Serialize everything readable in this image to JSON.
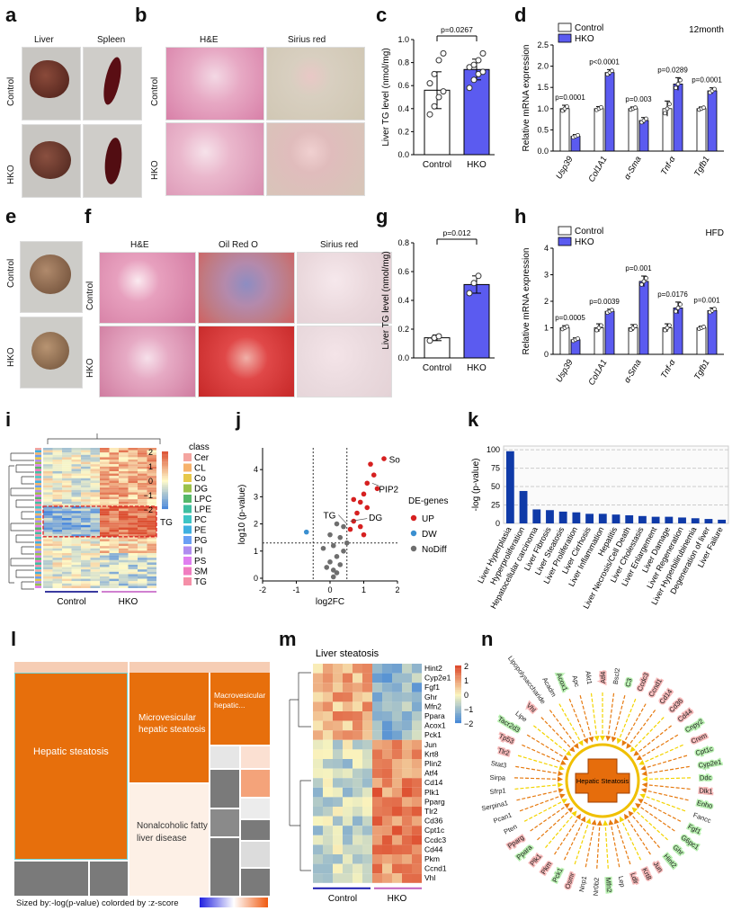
{
  "panels": [
    "a",
    "b",
    "c",
    "d",
    "e",
    "f",
    "g",
    "h",
    "i",
    "j",
    "k",
    "l",
    "m",
    "n"
  ],
  "a": {
    "cols": [
      "Liver",
      "Spleen"
    ],
    "rows": [
      "Control",
      "HKO"
    ]
  },
  "b": {
    "cols": [
      "H&E",
      "Sirius red"
    ],
    "rows": [
      "Control",
      "HKO"
    ]
  },
  "e": {
    "rows": [
      "Control",
      "HKO"
    ]
  },
  "f": {
    "cols": [
      "H&E",
      "Oil Red O",
      "Sirius red"
    ],
    "rows": [
      "Control",
      "HKO"
    ]
  },
  "chart_c": {
    "type": "bar",
    "categories": [
      "Control",
      "HKO"
    ],
    "values": [
      0.56,
      0.74
    ],
    "errors": [
      0.16,
      0.09
    ],
    "points": [
      [
        0.35,
        0.42,
        0.5,
        0.55,
        0.62,
        0.7,
        0.82,
        0.88
      ],
      [
        0.58,
        0.65,
        0.7,
        0.72,
        0.76,
        0.78,
        0.82,
        0.88
      ]
    ],
    "ylabel": "Liver TG level (nmol/mg)",
    "yticks": [
      "0.0",
      "0.2",
      "0.4",
      "0.6",
      "0.8",
      "1.0"
    ],
    "ylim": [
      0,
      1.0
    ],
    "pvalue": "p=0.0267",
    "colors": [
      "#ffffff",
      "#5b5bf0"
    ]
  },
  "chart_g": {
    "type": "bar",
    "categories": [
      "Control",
      "HKO"
    ],
    "values": [
      0.14,
      0.51
    ],
    "errors": [
      0.02,
      0.06
    ],
    "points": [
      [
        0.12,
        0.14,
        0.15
      ],
      [
        0.45,
        0.52,
        0.57
      ]
    ],
    "ylabel": "Liver TG level (nmol/mg)",
    "yticks": [
      "0.0",
      "0.2",
      "0.4",
      "0.6",
      "0.8"
    ],
    "ylim": [
      0,
      0.8
    ],
    "pvalue": "p=0.012",
    "colors": [
      "#ffffff",
      "#5b5bf0"
    ]
  },
  "chart_d": {
    "type": "bar",
    "categories": [
      "Usp39",
      "Col1A1",
      "α-Sma",
      "Tnf-α",
      "Tgfb1"
    ],
    "series": [
      {
        "name": "Control",
        "values": [
          1.0,
          1.0,
          1.0,
          1.0,
          1.0
        ]
      },
      {
        "name": "HKO",
        "values": [
          0.35,
          1.85,
          0.72,
          1.58,
          1.42
        ]
      }
    ],
    "errors": [
      [
        0.08,
        0.05,
        0.04,
        0.18,
        0.04
      ],
      [
        0.04,
        0.07,
        0.07,
        0.15,
        0.07
      ]
    ],
    "pvalues": [
      "p=0.0001",
      "p<0.0001",
      "p=0.003",
      "p=0.0289",
      "p=0.0001"
    ],
    "ylabel": "Relative mRNA expression",
    "yticks": [
      "0.0",
      "0.5",
      "1.0",
      "1.5",
      "2.0",
      "2.5"
    ],
    "ylim": [
      0,
      2.5
    ],
    "note": "12month",
    "colors": [
      "#ffffff",
      "#5b5bf0"
    ]
  },
  "chart_h": {
    "type": "bar",
    "categories": [
      "Usp39",
      "Col1A1",
      "α-Sma",
      "Tnf-α",
      "Tgfb1"
    ],
    "series": [
      {
        "name": "Control",
        "values": [
          1.0,
          1.0,
          1.0,
          1.0,
          1.0
        ]
      },
      {
        "name": "HKO",
        "values": [
          0.55,
          1.62,
          2.75,
          1.75,
          1.65
        ]
      }
    ],
    "errors": [
      [
        0.08,
        0.15,
        0.12,
        0.15,
        0.06
      ],
      [
        0.07,
        0.08,
        0.2,
        0.22,
        0.1
      ]
    ],
    "pvalues": [
      "p=0.0005",
      "p=0.0039",
      "p=0.001",
      "p=0.0176",
      "p=0.001"
    ],
    "ylabel": "Relative mRNA expression",
    "yticks": [
      "0",
      "1",
      "2",
      "3",
      "4"
    ],
    "ylim": [
      0,
      4
    ],
    "note": "HFD",
    "colors": [
      "#ffffff",
      "#5b5bf0"
    ]
  },
  "i": {
    "legend_title": "class",
    "classes": [
      "Cer",
      "CL",
      "Co",
      "DG",
      "LPC",
      "LPE",
      "PC",
      "PE",
      "PG",
      "PI",
      "PS",
      "SM",
      "TG"
    ],
    "class_colors": [
      "#f4a5a0",
      "#f6b26b",
      "#e6c84a",
      "#9bc14a",
      "#55b86a",
      "#3fbfa0",
      "#3ec5c5",
      "#3fb0e0",
      "#6a9ff5",
      "#b08cf0",
      "#e07ef0",
      "#f07cc0",
      "#f58fa8"
    ],
    "scale_ticks": [
      "2",
      "1",
      "0",
      "−1",
      "−2"
    ],
    "tg_label": "TG",
    "groups": [
      "Control",
      "HKO"
    ]
  },
  "chart_j": {
    "type": "scatter",
    "xlabel": "log2FC",
    "ylabel": "log10 (p-value)",
    "xticks": [
      "-2",
      "-1",
      "0",
      "1",
      "2"
    ],
    "yticks": [
      "0",
      "1",
      "2",
      "3",
      "4"
    ],
    "xlim": [
      -2,
      2
    ],
    "ylim": [
      -0.1,
      4.8
    ],
    "legend_title": "DE-genes",
    "legend": [
      {
        "name": "UP",
        "color": "#d62020"
      },
      {
        "name": "DW",
        "color": "#3a8fd0"
      },
      {
        "name": "NoDiff",
        "color": "#6e6e6e"
      }
    ],
    "labels": [
      "So",
      "PIP2",
      "DG",
      "TG"
    ],
    "up": [
      [
        1.6,
        4.4
      ],
      [
        1.2,
        4.2
      ],
      [
        1.3,
        3.8
      ],
      [
        1.1,
        3.5
      ],
      [
        1.4,
        3.3
      ],
      [
        1.0,
        3.1
      ],
      [
        0.9,
        2.8
      ],
      [
        1.1,
        2.6
      ],
      [
        0.8,
        2.4
      ],
      [
        0.7,
        2.1
      ],
      [
        0.9,
        1.9
      ],
      [
        0.6,
        1.8
      ],
      [
        1.0,
        1.6
      ],
      [
        0.7,
        2.9
      ]
    ],
    "dw": [
      [
        -0.7,
        1.7
      ]
    ],
    "nodiff": [
      [
        0.2,
        2.0
      ],
      [
        0.3,
        1.5
      ],
      [
        0.1,
        1.2
      ],
      [
        0.4,
        1.0
      ],
      [
        0.2,
        0.8
      ],
      [
        0.0,
        0.6
      ],
      [
        0.1,
        0.3
      ],
      [
        -0.1,
        0.4
      ],
      [
        0.3,
        0.5
      ],
      [
        0.2,
        0.2
      ],
      [
        0.0,
        1.6
      ],
      [
        0.4,
        1.9
      ],
      [
        -0.2,
        1.1
      ],
      [
        0.5,
        1.3
      ],
      [
        0.1,
        0.05
      ]
    ]
  },
  "chart_k": {
    "type": "bar",
    "categories": [
      "Liver Hyperplasia",
      "Hyperproliferation",
      "Hepatocellular carcinoma",
      "Liver Fibrosis",
      "Liver Steatosis",
      "Liver Proliferation",
      "Liver Cirrhosis",
      "Liver Inflammation",
      "Hepatitis",
      "Liver Necrosis/Cell Death",
      "Liver Cholestasis",
      "Liver Enlargement",
      "Liver Damage",
      "Liver Regeneration",
      "Liver Hyperbilirubinemia",
      "Degeneration of liver",
      "Liver Failure"
    ],
    "values": [
      98,
      44,
      19,
      18,
      16,
      15,
      13,
      13,
      12,
      11,
      10,
      9,
      9,
      8,
      7,
      6,
      5
    ],
    "ylabel": "-log (p-value)",
    "yticks": [
      "0",
      "25",
      "50",
      "75",
      "100"
    ],
    "ylim": [
      0,
      105
    ],
    "color": "#0f3aa8"
  },
  "l": {
    "cells": [
      "Hepatic steatosis",
      "Microvesicular hepatic steatosis",
      "Macrovesicular hepatic...",
      "Nonalcoholic fatty liver disease"
    ],
    "caption": "Sized by:-log(p-value) colorded by :z-score"
  },
  "m": {
    "title": "Liver steatosis",
    "genes": [
      "Hint2",
      "Cyp2e1",
      "Fgf1",
      "Ghr",
      "Mfn2",
      "Ppara",
      "Acox1",
      "Pck1",
      "Jun",
      "Krt8",
      "Plin2",
      "Atf4",
      "Cd14",
      "Plk1",
      "Pparg",
      "Tlr2",
      "Cd36",
      "Cpt1c",
      "Ccdc3",
      "Cd44",
      "Pkm",
      "Ccnd1",
      "Vhl"
    ],
    "scale_ticks": [
      "2",
      "1",
      "0",
      "−1",
      "−2"
    ],
    "groups": [
      "Control",
      "HKO"
    ]
  },
  "n": {
    "center": "Hepatic Steatosis",
    "genes": [
      "Atf4",
      "Bscl2",
      "C3",
      "Ccdc3",
      "Ccnd1",
      "Cd14",
      "Cd36",
      "Cd44",
      "Cnpy2",
      "Crem",
      "Cpt1c",
      "Cyp2e1",
      "Ddc",
      "Dlk1",
      "Enho",
      "Fancc",
      "Fgf1",
      "G6pc1",
      "Ghr",
      "Hint2",
      "Jun",
      "Krt8",
      "Ldlr",
      "Lep",
      "Mfn2",
      "Nr0b2",
      "Nnp1",
      "Osmr",
      "Pck1",
      "Pkm",
      "Plk1",
      "Ppara",
      "Pparg",
      "Pten",
      "Pcan1",
      "Serpina1",
      "Sfrp1",
      "Sirpa",
      "Stat3",
      "Tlr2",
      "Tp53",
      "Tacr2d3",
      "Lipe",
      "Vhl",
      "Lipopolysaccharide",
      "Acadm",
      "Acox1",
      "Apc",
      "Akt1"
    ],
    "red_genes": [
      "Atf4",
      "Ccdc3",
      "Ccnd1",
      "Cd14",
      "Cd36",
      "Cd44",
      "Crem",
      "Dlk1",
      "Pkm",
      "Plk1",
      "Pparg",
      "Tlr2",
      "Tp53",
      "Jun",
      "Krt8",
      "Vhl",
      "Osmr",
      "Ldlr"
    ],
    "green_genes": [
      "C3",
      "Cnpy2",
      "Cpt1c",
      "Cyp2e1",
      "Ddc",
      "Enho",
      "Fgf1",
      "G6pc1",
      "Ghr",
      "Hint2",
      "Mfn2",
      "Ppara",
      "Pck1",
      "Acox1",
      "Tacr2d3"
    ]
  }
}
